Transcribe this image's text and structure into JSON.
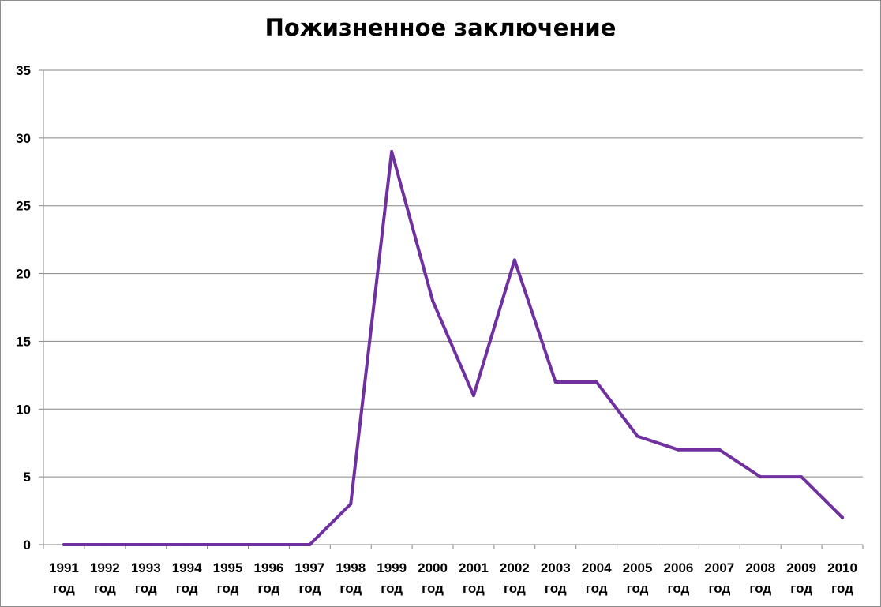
{
  "chart_data": {
    "type": "line",
    "title": "Пожизненное заключение",
    "categories": [
      [
        "1991",
        "год"
      ],
      [
        "1992",
        "год"
      ],
      [
        "1993",
        "год"
      ],
      [
        "1994",
        "год"
      ],
      [
        "1995",
        "год"
      ],
      [
        "1996",
        "год"
      ],
      [
        "1997",
        "год"
      ],
      [
        "1998",
        "год"
      ],
      [
        "1999",
        "год"
      ],
      [
        "2000",
        "год"
      ],
      [
        "2001",
        "год"
      ],
      [
        "2002",
        "год"
      ],
      [
        "2003",
        "год"
      ],
      [
        "2004",
        "год"
      ],
      [
        "2005",
        "год"
      ],
      [
        "2006",
        "год"
      ],
      [
        "2007",
        "год"
      ],
      [
        "2008",
        "год"
      ],
      [
        "2009",
        "год"
      ],
      [
        "2010",
        "год"
      ]
    ],
    "series": [
      {
        "values": [
          0,
          0,
          0,
          0,
          0,
          0,
          0,
          3,
          29,
          18,
          11,
          21,
          12,
          12,
          8,
          7,
          7,
          5,
          5,
          2
        ],
        "color": "#7030a0"
      }
    ],
    "ylim": [
      0,
      35
    ],
    "yticks": [
      0,
      5,
      10,
      15,
      20,
      25,
      30,
      35
    ],
    "grid": true,
    "legend": "none",
    "xlabel": "",
    "ylabel": ""
  }
}
